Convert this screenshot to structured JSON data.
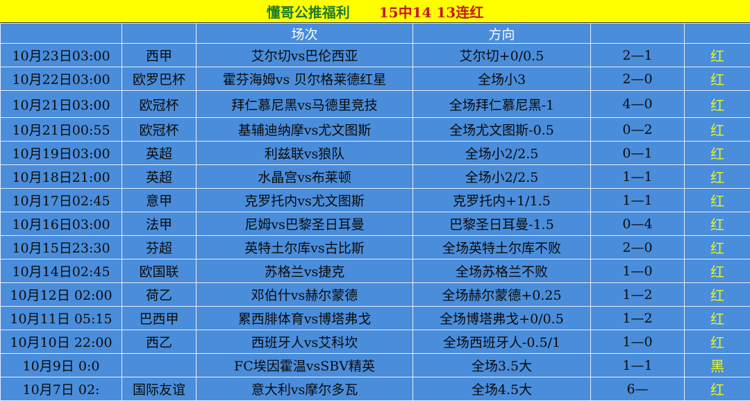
{
  "title": {
    "name": "懂哥公推福利",
    "record": "15中14 13连红"
  },
  "headers": [
    "",
    "",
    "场次",
    "方向",
    "",
    ""
  ],
  "colors": {
    "title_bg": "#ffff00",
    "table_bg": "#4a8ddb",
    "result": "#e6f51a",
    "title_name": "#1d7b2a",
    "title_record": "#c4161c"
  },
  "rows": [
    {
      "time": "10月23日03:00",
      "league": "西甲",
      "match": "艾尔切vs巴伦西亚",
      "pick": "艾尔切+0/0.5",
      "score": "2—1",
      "result": "红"
    },
    {
      "time": "10月22日03:00",
      "league": "欧罗巴杯",
      "match": "霍芬海姆vs 贝尔格莱德红星",
      "pick": "全场小3",
      "score": "2—0",
      "result": "红"
    },
    {
      "time": "10月21日03:00",
      "league": "欧冠杯",
      "match": "拜仁慕尼黑vs马德里竞技",
      "pick": "全场拜仁慕尼黑-1",
      "score": "4—0",
      "result": "红"
    },
    {
      "time": "10月21日00:55",
      "league": "欧冠杯",
      "match": "基辅迪纳摩vs尤文图斯",
      "pick": "全场尤文图斯-0.5",
      "score": "0—2",
      "result": "红"
    },
    {
      "time": "10月19日03:00",
      "league": "英超",
      "match": "利兹联vs狼队",
      "pick": "全场小2/2.5",
      "score": "0—1",
      "result": "红"
    },
    {
      "time": "10月18日21:00",
      "league": "英超",
      "match": "水晶宫vs布莱顿",
      "pick": "全场小2/2.5",
      "score": "1—1",
      "result": "红"
    },
    {
      "time": "10月17日02:45",
      "league": "意甲",
      "match": "克罗托内vs尤文图斯",
      "pick": "克罗托内+1/1.5",
      "score": "1—1",
      "result": "红"
    },
    {
      "time": "10月16日03:00",
      "league": "法甲",
      "match": "尼姆vs巴黎圣日耳曼",
      "pick": "巴黎圣日耳曼-1.5",
      "score": "0—4",
      "result": "红"
    },
    {
      "time": "10月15日23:30",
      "league": "芬超",
      "match": "英特土尔库vs古比斯",
      "pick": "全场英特土尔库不败",
      "score": "2—0",
      "result": "红"
    },
    {
      "time": "10月14日02:45",
      "league": "欧国联",
      "match": "苏格兰vs捷克",
      "pick": "全场苏格兰不败",
      "score": "1—0",
      "result": "红"
    },
    {
      "time": "10月12日 02:00",
      "league": "荷乙",
      "match": "邓伯什vs赫尔蒙德",
      "pick": "全场赫尔蒙德+0.25",
      "score": "1—2",
      "result": "红"
    },
    {
      "time": "10月11日 05:15",
      "league": "巴西甲",
      "match": "累西腓体育vs博塔弗戈",
      "pick": "全场博塔弗戈+0/0.5",
      "score": "1—2",
      "result": "红"
    },
    {
      "time": "10月10日 22:00",
      "league": "西乙",
      "match": "西班牙人vs艾科坎",
      "pick": "全场西班牙人-0.5/1",
      "score": "1—0",
      "result": "红"
    },
    {
      "time": "10月9日 0:0",
      "league": "",
      "match": "FC埃因霍温vsSBV精英",
      "pick": "全场3.5大",
      "score": "1—1",
      "result": "黑"
    },
    {
      "time": "10月7日 02:",
      "league": "国际友谊",
      "match": "意大利vs摩尔多瓦",
      "pick": "全场4.5大",
      "score": "6—",
      "result": "红"
    }
  ]
}
